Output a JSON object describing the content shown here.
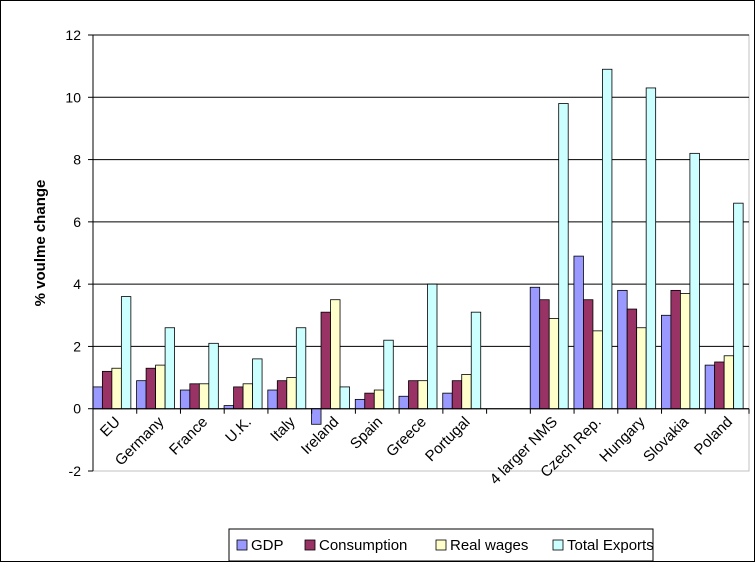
{
  "chart_data": {
    "type": "bar",
    "title": "",
    "xlabel": "",
    "ylabel": "% voulme change",
    "ylim": [
      -2,
      12
    ],
    "yticks": [
      "-2",
      "0",
      "2",
      "4",
      "6",
      "8",
      "10",
      "12"
    ],
    "grid": "horizontal",
    "legend_position": "bottom",
    "categories": [
      "EU",
      "Germany",
      "France",
      "U.K.",
      "Italy",
      "Ireland",
      "Spain",
      "Greece",
      "Portugal",
      "",
      "4 larger NMS",
      "Czech Rep.",
      "Hungary",
      "Slovakia",
      "Poland"
    ],
    "series": [
      {
        "name": "GDP",
        "color": "#9999ff",
        "values": [
          0.7,
          0.9,
          0.6,
          0.1,
          0.6,
          -0.5,
          0.3,
          0.4,
          0.5,
          null,
          3.9,
          4.9,
          3.8,
          3.0,
          1.4
        ]
      },
      {
        "name": "Consumption",
        "color": "#993366",
        "values": [
          1.2,
          1.3,
          0.8,
          0.7,
          0.9,
          3.1,
          0.5,
          0.9,
          0.9,
          null,
          3.5,
          3.5,
          3.2,
          3.8,
          1.5
        ]
      },
      {
        "name": "Real wages",
        "color": "#ffffcc",
        "values": [
          1.3,
          1.4,
          0.8,
          0.8,
          1.0,
          3.5,
          0.6,
          0.9,
          1.1,
          null,
          2.9,
          2.5,
          2.6,
          3.7,
          1.7
        ]
      },
      {
        "name": "Total Exports",
        "color": "#ccffff",
        "values": [
          3.6,
          2.6,
          2.1,
          1.6,
          2.6,
          0.7,
          2.2,
          4.0,
          3.1,
          null,
          9.8,
          10.9,
          10.3,
          8.2,
          6.6
        ]
      }
    ]
  }
}
